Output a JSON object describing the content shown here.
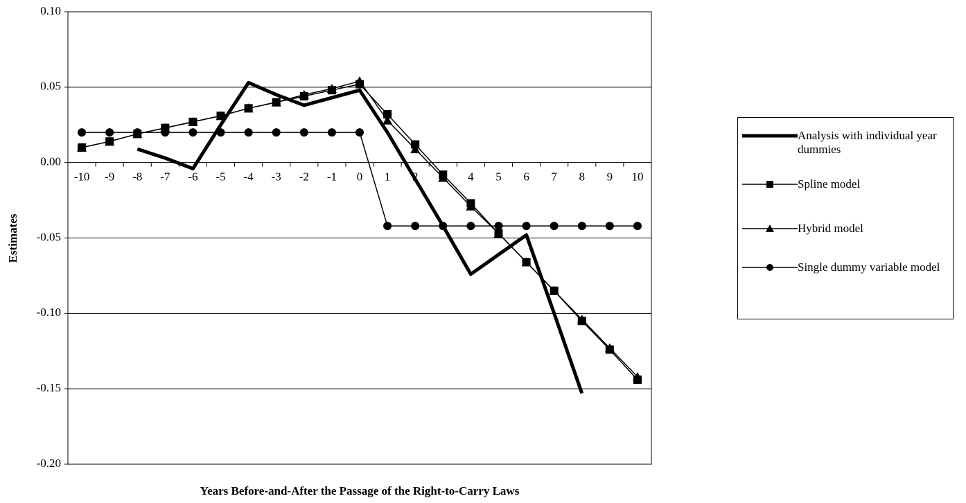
{
  "chart_data": {
    "type": "line",
    "x_label": "Years Before-and-After the Passage of the Right-to-Carry Laws",
    "y_label": "Estimates",
    "categories": [
      "-10",
      "-9",
      "-8",
      "-7",
      "-6",
      "-5",
      "-4",
      "-3",
      "-2",
      "-1",
      "0",
      "1",
      "2",
      "3",
      "4",
      "5",
      "6",
      "7",
      "8",
      "9",
      "10"
    ],
    "ylim": [
      -0.2,
      0.1
    ],
    "yticks": [
      {
        "value": -0.2,
        "label": "-0.20"
      },
      {
        "value": -0.15,
        "label": "-0.15"
      },
      {
        "value": -0.1,
        "label": "-0.10"
      },
      {
        "value": -0.05,
        "label": "-0.05"
      },
      {
        "value": 0,
        "label": "0.00"
      },
      {
        "value": 0.05,
        "label": "0.05"
      },
      {
        "value": 0.1,
        "label": "0.10"
      }
    ],
    "grid": true,
    "legend": "right",
    "series": [
      {
        "name": "Analysis with individual year dummies",
        "color": "#000000",
        "marker": "none",
        "width": 5,
        "values": [
          null,
          null,
          0.009,
          0.003,
          -0.004,
          0.025,
          0.053,
          0.045,
          0.038,
          0.043,
          0.048,
          0.02,
          -0.011,
          -0.042,
          -0.074,
          -0.061,
          -0.048,
          -0.1,
          -0.153,
          null,
          null
        ]
      },
      {
        "name": "Spline model",
        "color": "#000000",
        "marker": "square",
        "width": 1.5,
        "values": [
          0.01,
          0.014,
          0.019,
          0.023,
          0.027,
          0.031,
          0.036,
          0.04,
          0.044,
          0.048,
          0.052,
          0.032,
          0.012,
          -0.008,
          -0.027,
          -0.047,
          -0.066,
          -0.085,
          -0.105,
          -0.124,
          -0.144
        ]
      },
      {
        "name": "Hybrid model",
        "color": "#000000",
        "marker": "triangle",
        "width": 1.5,
        "values": [
          0.01,
          0.014,
          0.019,
          0.023,
          0.027,
          0.031,
          0.036,
          0.04,
          0.045,
          0.049,
          0.054,
          0.028,
          0.009,
          -0.01,
          -0.029,
          -0.047,
          -0.066,
          -0.085,
          -0.104,
          -0.123,
          -0.142
        ]
      },
      {
        "name": "Single dummy variable model",
        "color": "#000000",
        "marker": "circle",
        "width": 1.5,
        "values": [
          0.02,
          0.02,
          0.02,
          0.02,
          0.02,
          0.02,
          0.02,
          0.02,
          0.02,
          0.02,
          0.02,
          -0.042,
          -0.042,
          -0.042,
          -0.042,
          -0.042,
          -0.042,
          -0.042,
          -0.042,
          -0.042,
          -0.042
        ]
      }
    ]
  }
}
